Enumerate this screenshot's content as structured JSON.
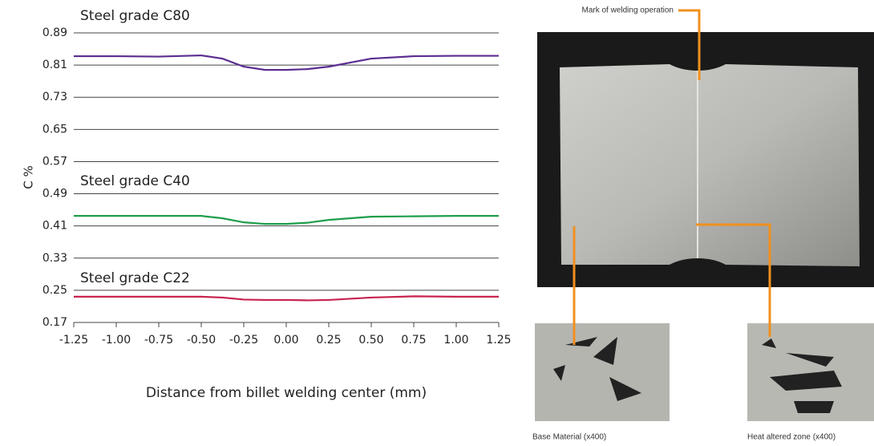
{
  "chart_data": {
    "type": "line",
    "y_label": "C %",
    "x_label": "Distance from billet welding center (mm)",
    "x": [
      -1.25,
      -1.0,
      -0.75,
      -0.5,
      -0.375,
      -0.25,
      -0.125,
      0,
      0.125,
      0.25,
      0.375,
      0.5,
      0.75,
      1.0,
      1.25
    ],
    "series": [
      {
        "name": "Steel grade C80",
        "color": "#5b2d91",
        "values": [
          0.832,
          0.832,
          0.831,
          0.834,
          0.826,
          0.806,
          0.798,
          0.798,
          0.8,
          0.806,
          0.816,
          0.826,
          0.832,
          0.833,
          0.833
        ]
      },
      {
        "name": "Steel grade C40",
        "color": "#1f9e4b",
        "values": [
          0.435,
          0.435,
          0.435,
          0.435,
          0.429,
          0.419,
          0.415,
          0.415,
          0.418,
          0.425,
          0.429,
          0.433,
          0.434,
          0.435,
          0.435
        ]
      },
      {
        "name": "Steel grade C22",
        "color": "#c8234e",
        "values": [
          0.234,
          0.234,
          0.234,
          0.234,
          0.232,
          0.227,
          0.226,
          0.226,
          0.225,
          0.226,
          0.229,
          0.232,
          0.235,
          0.234,
          0.234
        ]
      }
    ],
    "xlim": [
      -1.25,
      1.25
    ],
    "xticks": [
      -1.25,
      {
        "value": -1,
        "label": "-1.00"
      },
      -0.75,
      {
        "value": -0.5,
        "label": "-0.50"
      },
      -0.25,
      {
        "value": 0,
        "label": "0.00"
      },
      0.25,
      {
        "value": 0.5,
        "label": "0.50"
      },
      0.75,
      {
        "value": 1,
        "label": "1.00"
      },
      1.25
    ],
    "ylim": [
      0.17,
      0.89
    ],
    "yticks": [
      0.17,
      0.25,
      0.33,
      0.41,
      0.49,
      0.57,
      0.65,
      0.73,
      0.81,
      0.89
    ],
    "grid": true,
    "annotations": [
      "Mark of welding operation",
      "Base Material (x400)",
      "Heat altered zone (x400)"
    ]
  }
}
